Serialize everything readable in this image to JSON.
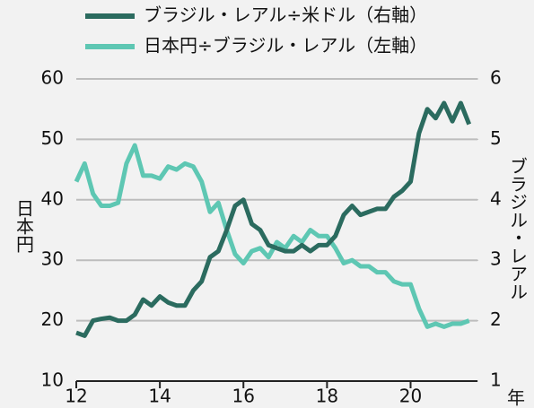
{
  "chart_data": {
    "type": "line",
    "xlabel": "年",
    "ylabel": "日本円",
    "y2label": "ブラジル・レアル",
    "x": [
      12.0,
      12.2,
      12.4,
      12.6,
      12.8,
      13.0,
      13.2,
      13.4,
      13.6,
      13.8,
      14.0,
      14.2,
      14.4,
      14.6,
      14.8,
      15.0,
      15.2,
      15.4,
      15.6,
      15.8,
      16.0,
      16.2,
      16.4,
      16.6,
      16.8,
      17.0,
      17.2,
      17.4,
      17.6,
      17.8,
      18.0,
      18.2,
      18.4,
      18.6,
      18.8,
      19.0,
      19.2,
      19.4,
      19.6,
      19.8,
      20.0,
      20.2,
      20.4,
      20.6,
      20.8,
      21.0,
      21.2,
      21.4
    ],
    "series": [
      {
        "name": "ブラジル・レアル÷米ドル（右軸）",
        "color": "#2b6b5f",
        "axis": "y2",
        "values": [
          1.8,
          1.75,
          2.0,
          2.03,
          2.05,
          2.0,
          2.0,
          2.1,
          2.35,
          2.25,
          2.4,
          2.3,
          2.25,
          2.25,
          2.5,
          2.65,
          3.05,
          3.15,
          3.5,
          3.9,
          4.0,
          3.6,
          3.5,
          3.25,
          3.2,
          3.15,
          3.15,
          3.25,
          3.15,
          3.25,
          3.25,
          3.4,
          3.75,
          3.9,
          3.75,
          3.8,
          3.85,
          3.85,
          4.05,
          4.15,
          4.3,
          5.1,
          5.5,
          5.35,
          5.6,
          5.3,
          5.6,
          5.25
        ]
      },
      {
        "name": "日本円÷ブラジル・レアル（左軸）",
        "color": "#5ec7b3",
        "values": [
          43,
          46,
          41,
          39,
          39,
          39.5,
          46,
          49,
          44,
          44,
          43.5,
          45.5,
          45,
          46,
          45.5,
          43,
          38,
          39.5,
          35,
          31,
          29.5,
          31.5,
          32,
          30.5,
          33,
          32,
          34,
          33,
          35,
          34,
          34,
          32,
          29.5,
          30,
          29,
          29,
          28,
          28,
          26.5,
          26,
          26,
          22,
          19,
          19.5,
          19,
          19.5,
          19.5,
          20
        ]
      }
    ],
    "xlim": [
      12,
      21.6
    ],
    "xticks": [
      12,
      14,
      16,
      18,
      20
    ],
    "ylim": [
      10,
      60
    ],
    "yticks": [
      10,
      20,
      30,
      40,
      50,
      60
    ],
    "y2lim": [
      1,
      6
    ],
    "y2ticks": [
      1,
      2,
      3,
      4,
      5,
      6
    ],
    "grid": true
  }
}
